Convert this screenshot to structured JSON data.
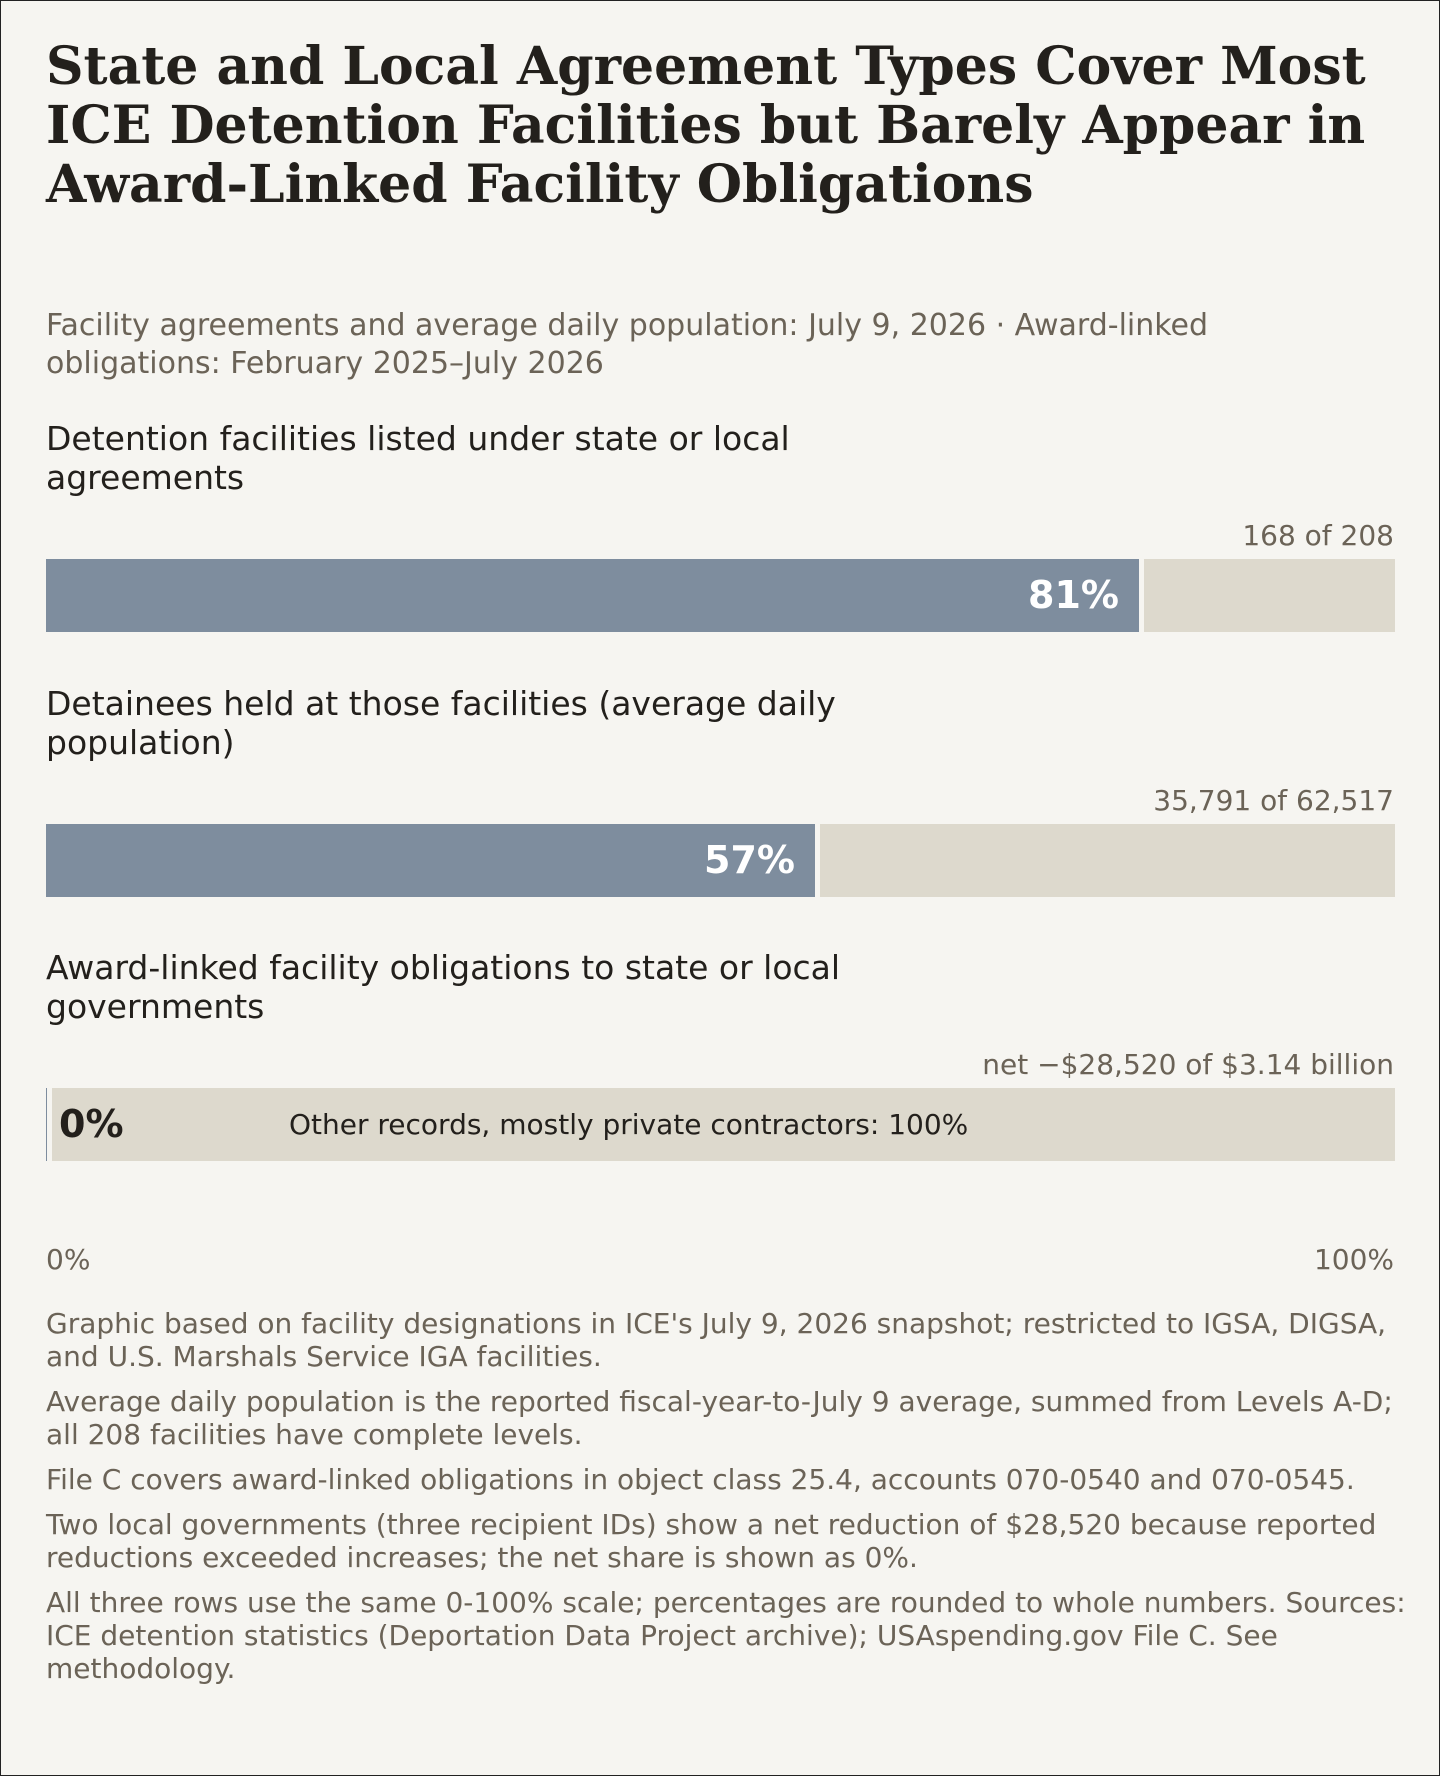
{
  "title": "State and Local Agreement Types Cover Most ICE Detention Facilities but Barely Appear in Award-Linked Facility Obligations",
  "subtitle": "Facility agreements and average daily population: July 9, 2026 · Award-linked obligations: February 2025–July 2026",
  "colors": {
    "background": "#f6f5f1",
    "bar_fill": "#7e8d9e",
    "bar_track": "#ddd9cd",
    "text_primary": "#23201c",
    "text_muted": "#6b6357"
  },
  "chart_data": {
    "type": "bar",
    "orientation": "horizontal",
    "scale": [
      0,
      100
    ],
    "axis": {
      "min_label": "0%",
      "max_label": "100%"
    },
    "rows": [
      {
        "label": "Detention facilities listed under state or local agreements",
        "count_text": "168 of 208",
        "value": 81,
        "value_label": "81%",
        "other_label": ""
      },
      {
        "label": "Detainees held at those facilities (average daily population)",
        "count_text": "35,791 of 62,517",
        "value": 57,
        "value_label": "57%",
        "other_label": ""
      },
      {
        "label": "Award-linked facility obligations to state or local governments",
        "count_text": "net −$28,520 of $3.14 billion",
        "value": 0,
        "value_label": "0%",
        "other_label": "Other records, mostly private contractors: 100%"
      }
    ]
  },
  "notes": [
    "Graphic based on facility designations in ICE's July 9, 2026 snapshot; restricted to IGSA, DIGSA, and U.S. Marshals Service IGA facilities.",
    "Average daily population is the reported fiscal-year-to-July 9 average, summed from Levels A-D; all 208 facilities have complete levels.",
    "File C covers award-linked obligations in object class 25.4, accounts 070-0540 and 070-0545.",
    "Two local governments (three recipient IDs) show a net reduction of $28,520 because reported reductions exceeded increases; the net share is shown as 0%.",
    "All three rows use the same 0-100% scale; percentages are rounded to whole numbers. Sources: ICE detention statistics (Deportation Data Project archive); USAspending.gov File C. See methodology."
  ]
}
